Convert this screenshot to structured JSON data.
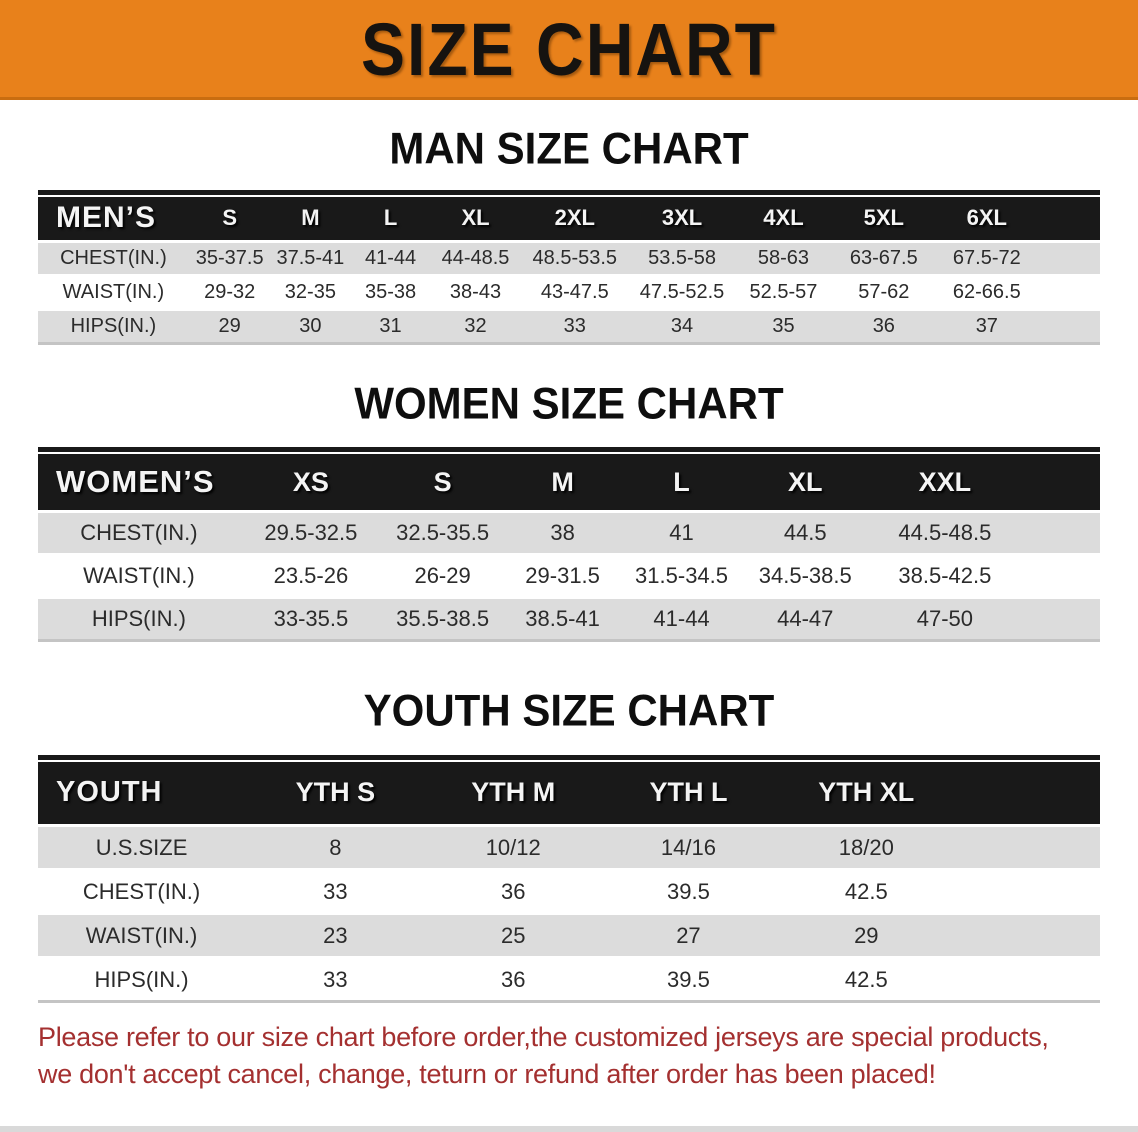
{
  "banner": {
    "title": "SIZE CHART"
  },
  "colors": {
    "banner_bg": "#e8811b",
    "table_header_bg": "#191919",
    "row_gray": "#dcdcdc",
    "note_red": "#a43030"
  },
  "sections": [
    {
      "heading": "MAN SIZE CHART",
      "table": {
        "label": "MEN’S",
        "sizes": [
          "S",
          "M",
          "L",
          "XL",
          "2XL",
          "3XL",
          "4XL",
          "5XL",
          "6XL"
        ],
        "rows": [
          {
            "label": "CHEST(IN.)",
            "values": [
              "35-37.5",
              "37.5-41",
              "41-44",
              "44-48.5",
              "48.5-53.5",
              "53.5-58",
              "58-63",
              "63-67.5",
              "67.5-72"
            ]
          },
          {
            "label": "WAIST(IN.)",
            "values": [
              "29-32",
              "32-35",
              "35-38",
              "38-43",
              "43-47.5",
              "47.5-52.5",
              "52.5-57",
              "57-62",
              "62-66.5"
            ]
          },
          {
            "label": "HIPS(IN.)",
            "values": [
              "29",
              "30",
              "31",
              "32",
              "33",
              "34",
              "35",
              "36",
              "37"
            ]
          }
        ]
      }
    },
    {
      "heading": "WOMEN SIZE CHART",
      "table": {
        "label": "WOMEN’S",
        "sizes": [
          "XS",
          "S",
          "M",
          "L",
          "XL",
          "XXL"
        ],
        "rows": [
          {
            "label": "CHEST(IN.)",
            "values": [
              "29.5-32.5",
              "32.5-35.5",
              "38",
              "41",
              "44.5",
              "44.5-48.5"
            ]
          },
          {
            "label": "WAIST(IN.)",
            "values": [
              "23.5-26",
              "26-29",
              "29-31.5",
              "31.5-34.5",
              "34.5-38.5",
              "38.5-42.5"
            ]
          },
          {
            "label": "HIPS(IN.)",
            "values": [
              "33-35.5",
              "35.5-38.5",
              "38.5-41",
              "41-44",
              "44-47",
              "47-50"
            ]
          }
        ]
      }
    },
    {
      "heading": "YOUTH SIZE CHART",
      "table": {
        "label": "YOUTH",
        "sizes": [
          "YTH S",
          "YTH M",
          "YTH L",
          "YTH XL"
        ],
        "rows": [
          {
            "label": "U.S.SIZE",
            "values": [
              "8",
              "10/12",
              "14/16",
              "18/20"
            ]
          },
          {
            "label": "CHEST(IN.)",
            "values": [
              "33",
              "36",
              "39.5",
              "42.5"
            ]
          },
          {
            "label": "WAIST(IN.)",
            "values": [
              "23",
              "25",
              "27",
              "29"
            ]
          },
          {
            "label": "HIPS(IN.)",
            "values": [
              "33",
              "36",
              "39.5",
              "42.5"
            ]
          }
        ]
      }
    }
  ],
  "footer": {
    "line1": "Please refer to our size chart before order,the customized jerseys are special products,",
    "line2": "we don't accept cancel, change, teturn or refund after order has been placed!"
  }
}
